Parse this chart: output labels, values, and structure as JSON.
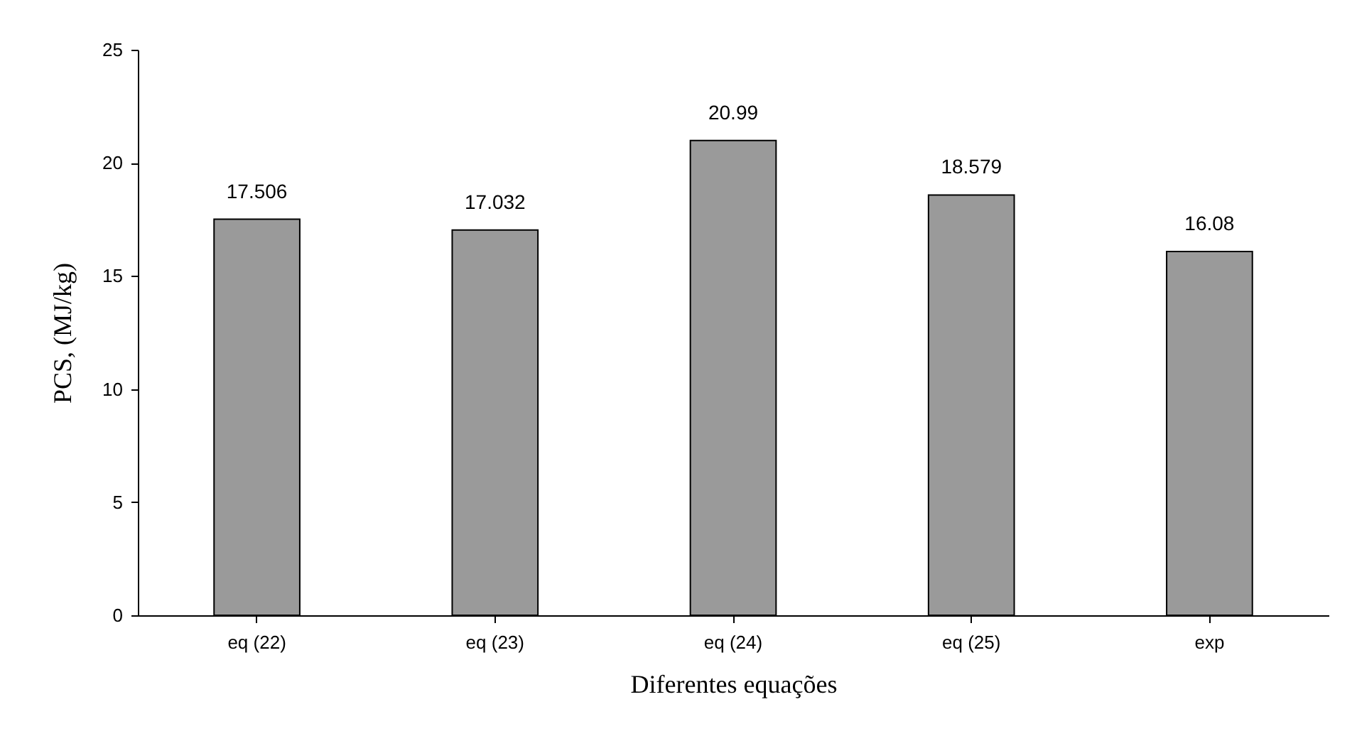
{
  "chart_data": {
    "type": "bar",
    "xlabel": "Diferentes equações",
    "ylabel": "PCS, (MJ/kg)",
    "categories": [
      "eq (22)",
      "eq (23)",
      "eq (24)",
      "eq (25)",
      "exp"
    ],
    "values": [
      17.506,
      17.032,
      20.99,
      18.579,
      16.08
    ],
    "color": "#9a9a9a",
    "ylim": [
      0,
      25
    ],
    "yticks": [
      0,
      5,
      10,
      15,
      20,
      25
    ],
    "grid": false,
    "data_labels": true
  }
}
